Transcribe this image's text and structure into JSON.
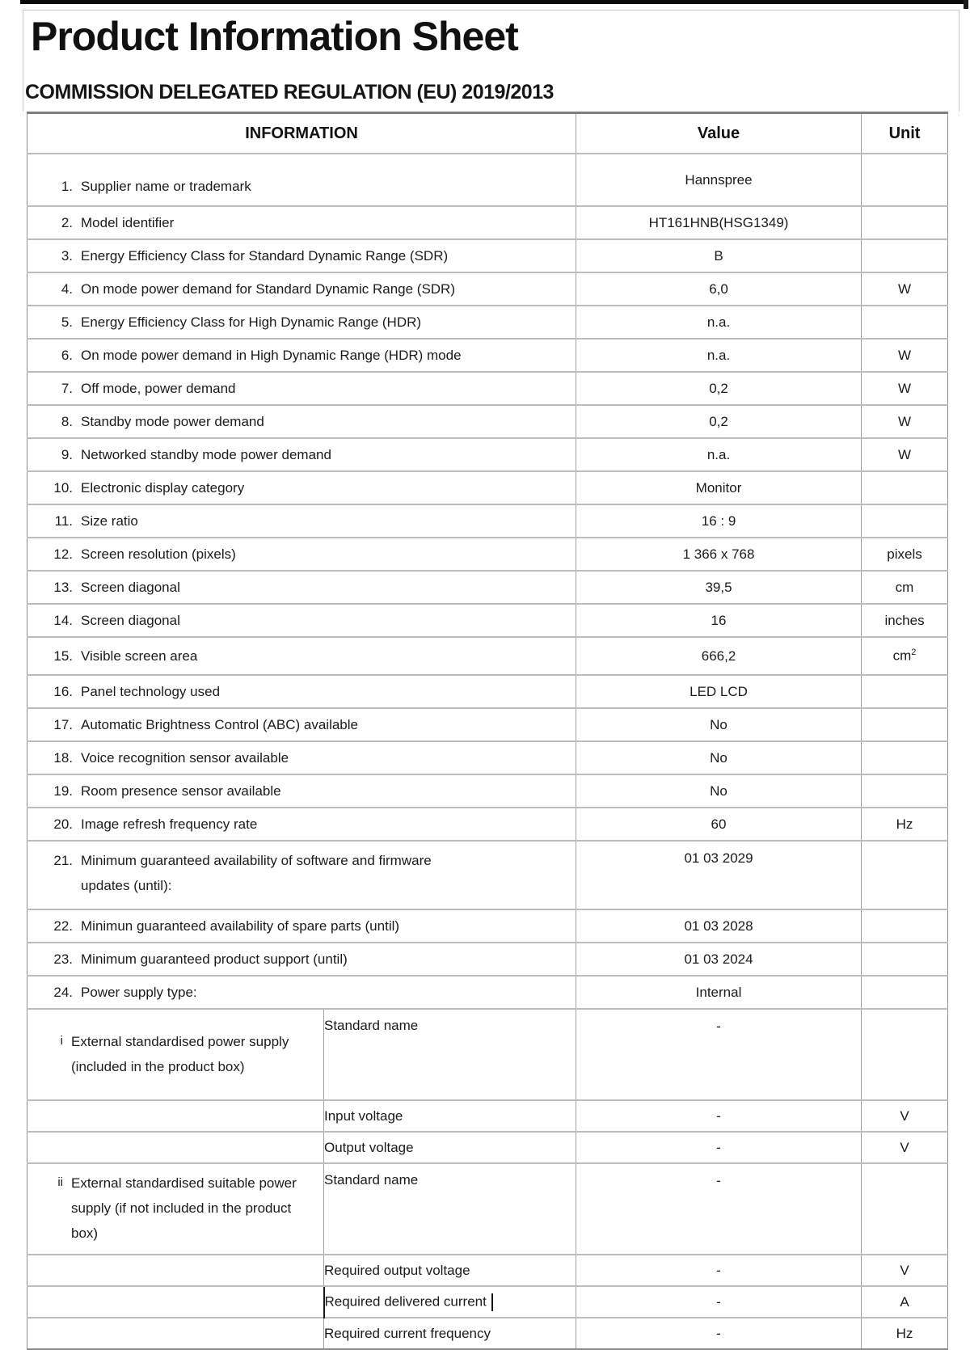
{
  "page": {
    "title": "Product Information Sheet",
    "subtitle": "COMMISSION DELEGATED REGULATION (EU) 2019/2013"
  },
  "table": {
    "headers": {
      "information": "INFORMATION",
      "value": "Value",
      "unit": "Unit"
    },
    "rows": [
      {
        "num": "1.",
        "label": "Supplier name or trademark",
        "value": "Hannspree",
        "unit": "",
        "variant": "first"
      },
      {
        "num": "2.",
        "label": "Model identifier",
        "value": "HT161HNB(HSG1349)",
        "unit": "",
        "variant": "std"
      },
      {
        "num": "3.",
        "label": "Energy Efficiency Class for Standard Dynamic Range (SDR)",
        "value": "B",
        "unit": "",
        "variant": "std"
      },
      {
        "num": "4.",
        "label": "On mode power demand for Standard Dynamic Range (SDR)",
        "value": "6,0",
        "unit": "W",
        "variant": "std"
      },
      {
        "num": "5.",
        "label": "Energy Efficiency Class for High Dynamic Range (HDR)",
        "value": "n.a.",
        "unit": "",
        "variant": "std"
      },
      {
        "num": "6.",
        "label": "On mode power demand in High Dynamic Range (HDR) mode",
        "value": "n.a.",
        "unit": "W",
        "variant": "std"
      },
      {
        "num": "7.",
        "label": "Off mode, power demand",
        "value": "0,2",
        "unit": "W",
        "variant": "std"
      },
      {
        "num": "8.",
        "label": "Standby mode power demand",
        "value": "0,2",
        "unit": "W",
        "variant": "std"
      },
      {
        "num": "9.",
        "label": "Networked standby mode power demand",
        "value": "n.a.",
        "unit": "W",
        "variant": "std"
      },
      {
        "num": "10.",
        "label": "Electronic display category",
        "value": "Monitor",
        "unit": "",
        "variant": "std"
      },
      {
        "num": "11.",
        "label": "Size ratio",
        "value": "16 : 9",
        "unit": "",
        "variant": "std"
      },
      {
        "num": "12.",
        "label": "Screen resolution (pixels)",
        "value": "1 366 x 768",
        "unit": "pixels",
        "variant": "std"
      },
      {
        "num": "13.",
        "label": "Screen diagonal",
        "value": "39,5",
        "unit": "cm",
        "variant": "std"
      },
      {
        "num": "14.",
        "label": "Screen diagonal",
        "value": "16",
        "unit": "inches",
        "variant": "std"
      },
      {
        "num": "15.",
        "label": "Visible screen area",
        "value": "666,2",
        "unit": "cm",
        "unit_sup": "2",
        "variant": "area"
      },
      {
        "num": "16.",
        "label": "Panel technology used",
        "value": "LED LCD",
        "unit": "",
        "variant": "std"
      },
      {
        "num": "17.",
        "label": "Automatic Brightness Control (ABC) available",
        "value": "No",
        "unit": "",
        "variant": "std"
      },
      {
        "num": "18.",
        "label": "Voice recognition sensor available",
        "value": "No",
        "unit": "",
        "variant": "std"
      },
      {
        "num": "19.",
        "label": "Room presence sensor available",
        "value": "No",
        "unit": "",
        "variant": "std"
      },
      {
        "num": "20.",
        "label": "Image refresh frequency rate",
        "value": "60",
        "unit": "Hz",
        "variant": "std"
      },
      {
        "num": "21.",
        "label": "Minimum guaranteed availability of software and firmware",
        "label2": "updates (until):",
        "value": "01 03 2029",
        "unit": "",
        "variant": "twoline"
      },
      {
        "num": "22.",
        "label": "Minimun guaranteed availability of spare parts (until)",
        "value": "01 03 2028",
        "unit": "",
        "variant": "std"
      },
      {
        "num": "23.",
        "label": "Minimum guaranteed product support (until)",
        "value": "01 03 2024",
        "unit": "",
        "variant": "std"
      },
      {
        "num": "24.",
        "label": "Power supply type:",
        "value": "Internal",
        "unit": "",
        "variant": "std"
      },
      {
        "marker": "i",
        "label": "External standardised power supply (included in the product box)",
        "sublabel": "Standard name",
        "value": "-",
        "unit": "",
        "variant": "split"
      },
      {
        "sublabel": "Input voltage",
        "value": "-",
        "unit": "V",
        "variant": "sub"
      },
      {
        "sublabel": "Output voltage",
        "value": "-",
        "unit": "V",
        "variant": "sub"
      },
      {
        "marker": "ii",
        "label": "External standardised suitable power supply (if not included in the product box)",
        "sublabel": "Standard name",
        "value": "-",
        "unit": "",
        "variant": "split"
      },
      {
        "sublabel": "Required output voltage",
        "value": "-",
        "unit": "V",
        "variant": "sub"
      },
      {
        "sublabel": "Required delivered current",
        "value": "-",
        "unit": "A",
        "variant": "sub",
        "cursor": true
      },
      {
        "sublabel": "Required current frequency",
        "value": "-",
        "unit": "Hz",
        "variant": "sub"
      }
    ]
  }
}
